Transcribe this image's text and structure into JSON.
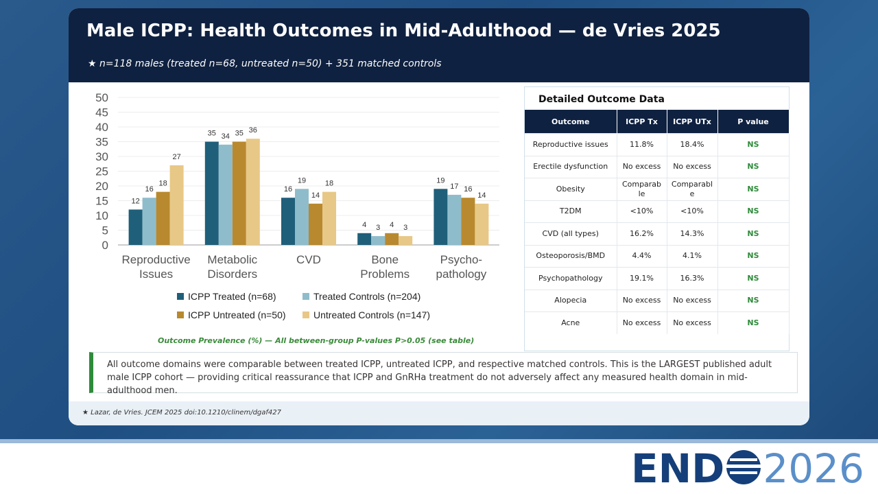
{
  "header": {
    "title": "Male ICPP: Health Outcomes in Mid-Adulthood — de Vries 2025",
    "subtitle": "★ n=118 males (treated n=68, untreated n=50) + 351 matched controls"
  },
  "chart_data": {
    "type": "bar",
    "categories": [
      "Reproductive Issues",
      "Metabolic Disorders",
      "CVD",
      "Bone Problems",
      "Psycho-pathology"
    ],
    "series": [
      {
        "name": "ICPP Treated (n=68)",
        "color": "#1f5f7a",
        "values": [
          12,
          35,
          16,
          4,
          19
        ]
      },
      {
        "name": "Treated Controls (n=204)",
        "color": "#8fbccb",
        "values": [
          16,
          34,
          19,
          3,
          17
        ]
      },
      {
        "name": "ICPP Untreated (n=50)",
        "color": "#b8892e",
        "values": [
          18,
          35,
          14,
          4,
          16
        ]
      },
      {
        "name": "Untreated Controls (n=147)",
        "color": "#e8c886",
        "values": [
          27,
          36,
          18,
          3,
          14
        ]
      }
    ],
    "ylim": [
      0,
      50
    ],
    "yticks": [
      0,
      5,
      10,
      15,
      20,
      25,
      30,
      35,
      40,
      45,
      50
    ],
    "grid": true,
    "caption": "Outcome Prevalence (%)  — All between-group P-values P>0.05 (see table)"
  },
  "table": {
    "title": "Detailed Outcome Data",
    "columns": [
      "Outcome",
      "ICPP Tx",
      "ICPP UTx",
      "P value"
    ],
    "rows": [
      [
        "Reproductive issues",
        "11.8%",
        "18.4%",
        "NS"
      ],
      [
        "Erectile dysfunction",
        "No excess",
        "No excess",
        "NS"
      ],
      [
        "Obesity",
        "Comparable",
        "Comparable",
        "NS"
      ],
      [
        "T2DM",
        "<10%",
        "<10%",
        "NS"
      ],
      [
        "CVD (all types)",
        "16.2%",
        "14.3%",
        "NS"
      ],
      [
        "Osteoporosis/BMD",
        "4.4%",
        "4.1%",
        "NS"
      ],
      [
        "Psychopathology",
        "19.1%",
        "16.3%",
        "NS"
      ],
      [
        "Alopecia",
        "No excess",
        "No excess",
        "NS"
      ],
      [
        "Acne",
        "No excess",
        "No excess",
        "NS"
      ]
    ]
  },
  "note": "All outcome domains were comparable between treated ICPP, untreated ICPP, and respective matched controls. This is the LARGEST published adult male ICPP cohort — providing critical reassurance that ICPP and GnRHa treatment do not adversely affect any measured health domain in mid-adulthood men.",
  "footer": "★ Lazar,  de Vries. JCEM 2025 doi:10.1210/clinem/dgaf427",
  "logo": {
    "left": "END",
    "right": "2026"
  }
}
